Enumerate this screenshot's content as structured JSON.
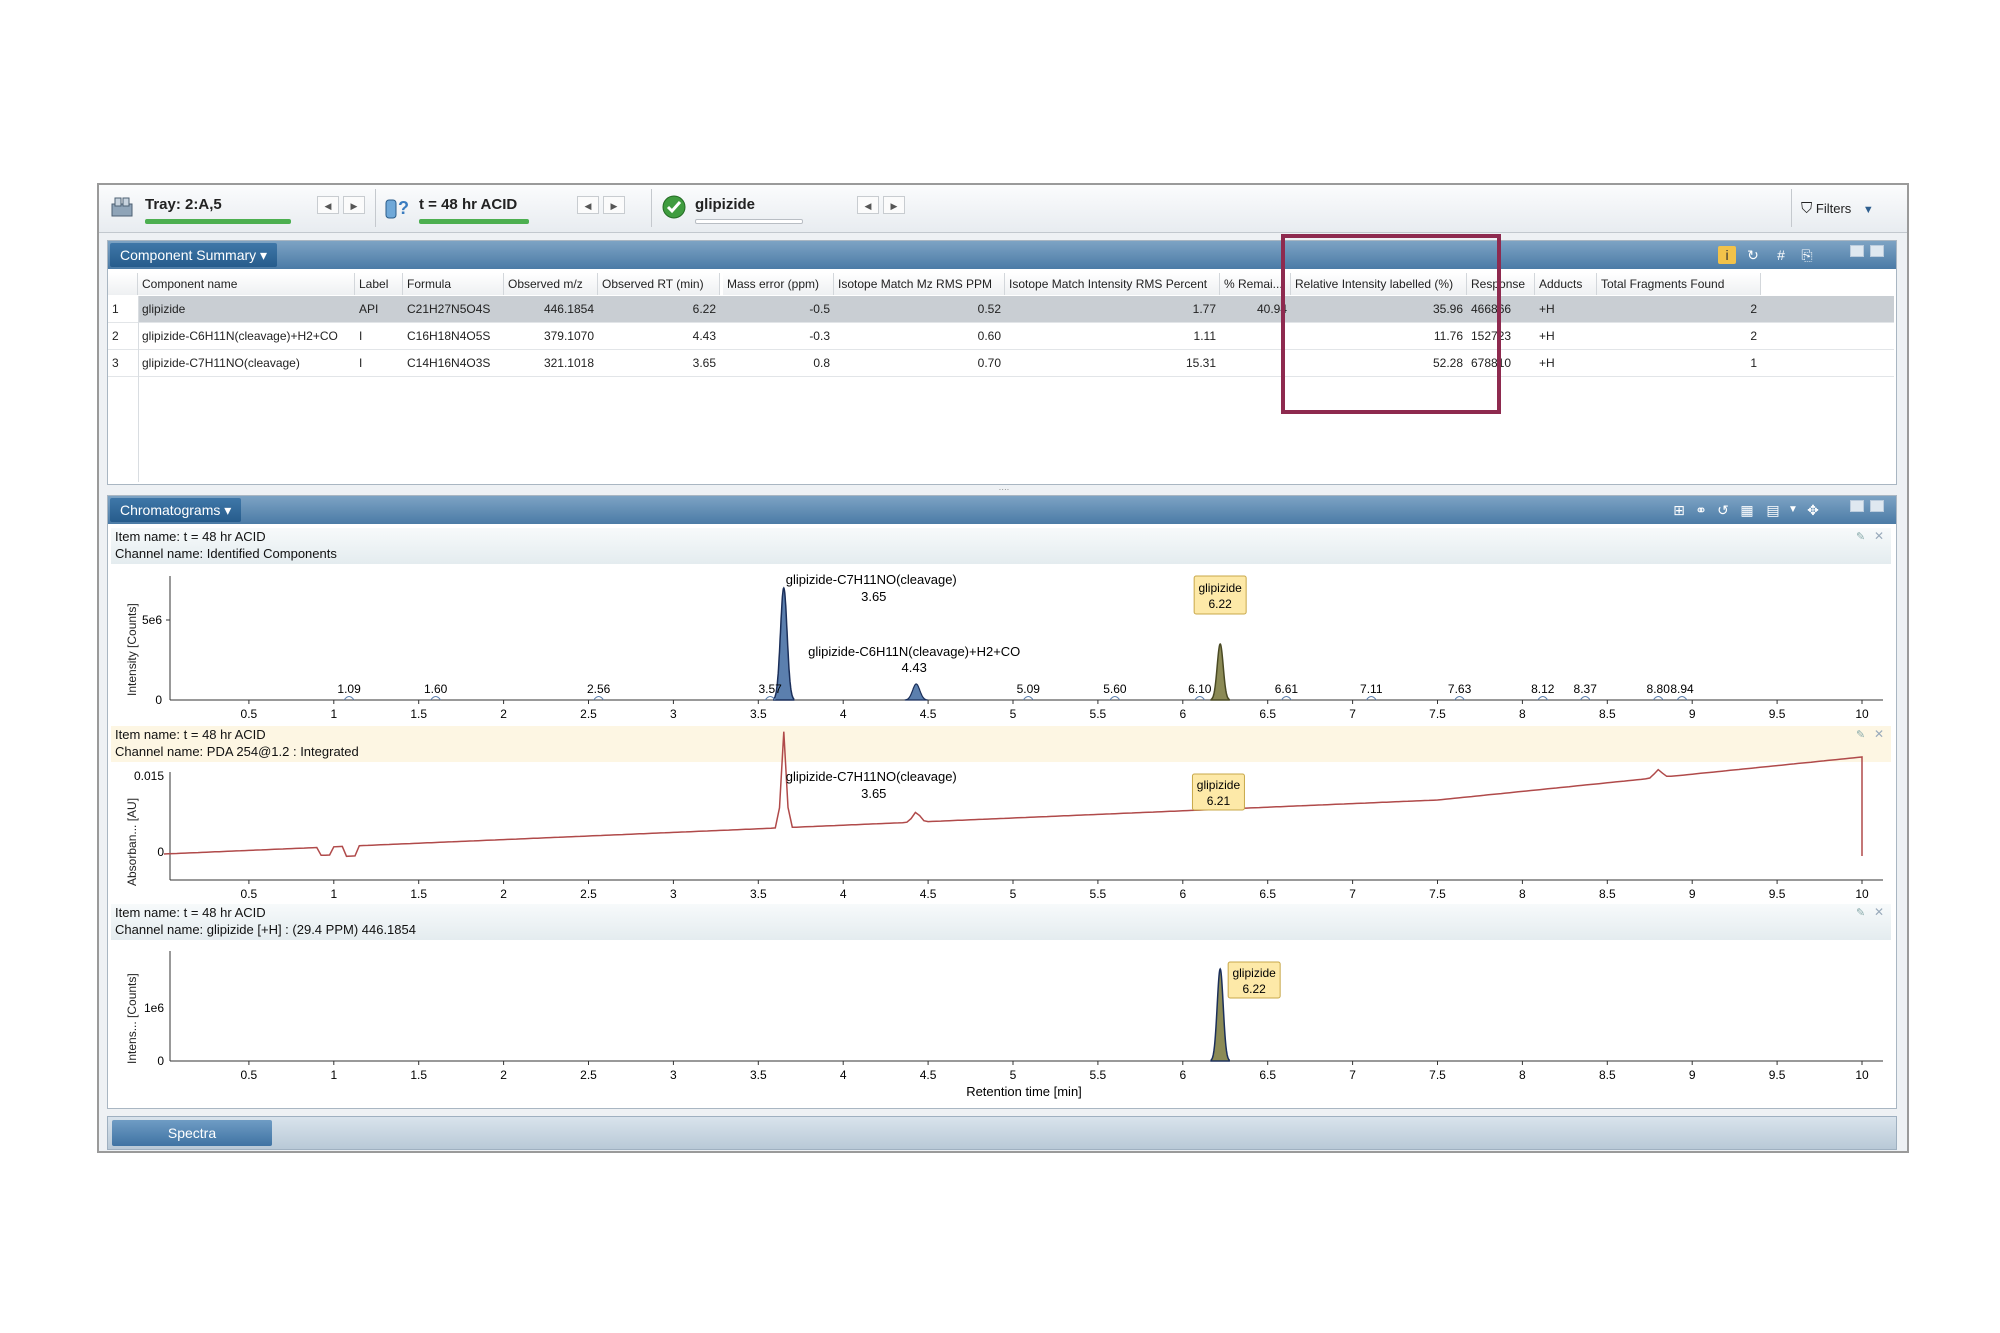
{
  "toolbar": {
    "tray_label": "Tray: 2:A,5",
    "item_label": "t = 48 hr ACID",
    "component_label": "glipizide",
    "filters_label": "Filters",
    "tray_icon": "tray-icon",
    "item_icon": "question-icon",
    "component_icon": "check-circle-icon",
    "tray_progress": 1.0,
    "item_progress": 1.0,
    "component_progress": 0.0
  },
  "component_summary": {
    "title": "Component Summary ▾",
    "columns": [
      "Component name",
      "Label",
      "Formula",
      "Observed m/z",
      "Observed RT (min)",
      "Mass error (ppm)",
      "Isotope Match Mz RMS PPM",
      "Isotope Match Intensity RMS Percent",
      "% Remai...",
      "Relative Intensity labelled (%)",
      "Response",
      "Adducts",
      "Total Fragments Found"
    ],
    "rows": [
      {
        "n": "1",
        "name": "glipizide",
        "label": "API",
        "formula": "C21H27N5O4S",
        "mz": "446.1854",
        "rt": "6.22",
        "mass_err": "-0.5",
        "iso_mz": "0.52",
        "iso_int": "1.77",
        "remain": "40.94",
        "rel": "35.96",
        "response": "466866",
        "adducts": "+H",
        "frags": "2"
      },
      {
        "n": "2",
        "name": "glipizide-C6H11N(cleavage)+H2+CO",
        "label": "I",
        "formula": "C16H18N4O5S",
        "mz": "379.1070",
        "rt": "4.43",
        "mass_err": "-0.3",
        "iso_mz": "0.60",
        "iso_int": "1.11",
        "remain": "",
        "rel": "11.76",
        "response": "152723",
        "adducts": "+H",
        "frags": "2"
      },
      {
        "n": "3",
        "name": "glipizide-C7H11NO(cleavage)",
        "label": "I",
        "formula": "C14H16N4O3S",
        "mz": "321.1018",
        "rt": "3.65",
        "mass_err": "0.8",
        "iso_mz": "0.70",
        "iso_int": "15.31",
        "remain": "",
        "rel": "52.28",
        "response": "678810",
        "adducts": "+H",
        "frags": "1"
      }
    ]
  },
  "chromatograms": {
    "title": "Chromatograms ▾",
    "x_label": "Retention time [min]",
    "x_ticks": [
      "0.5",
      "1",
      "1.5",
      "2",
      "2.5",
      "3",
      "3.5",
      "4",
      "4.5",
      "5",
      "5.5",
      "6",
      "6.5",
      "7",
      "7.5",
      "8",
      "8.5",
      "9",
      "9.5",
      "10"
    ],
    "strips": [
      {
        "item_name": "Item name: t = 48 hr ACID",
        "channel_name": "Channel name: Identified Components",
        "ylabel": "Intensity [Counts]",
        "y_ticks": [
          "5e6",
          "0"
        ],
        "peak_labels": [
          "1.09",
          "1.60",
          "2.56",
          "3.57",
          "5.09",
          "5.60",
          "6.10",
          "6.61",
          "7.11",
          "7.63",
          "8.12",
          "8.37",
          "8.80",
          "8.94"
        ],
        "annotations": [
          {
            "name": "glipizide-C7H11NO(cleavage)",
            "rt": "3.65"
          },
          {
            "name": "glipizide-C6H11N(cleavage)+H2+CO",
            "rt": "4.43"
          },
          {
            "name": "glipizide",
            "rt": "6.22"
          }
        ]
      },
      {
        "item_name": "Item name: t = 48 hr ACID",
        "channel_name": "Channel name: PDA 254@1.2 : Integrated",
        "ylabel": "Absorban... [AU]",
        "y_ticks": [
          "0.015",
          "0"
        ],
        "annotations": [
          {
            "name": "glipizide-C7H11NO(cleavage)",
            "rt": "3.65"
          },
          {
            "name": "glipizide",
            "rt": "6.21"
          }
        ]
      },
      {
        "item_name": "Item name: t = 48 hr ACID",
        "channel_name": "Channel name: glipizide [+H] : (29.4 PPM) 446.1854",
        "ylabel": "Intens... [Counts]",
        "y_ticks": [
          "1e6",
          "0"
        ],
        "annotations": [
          {
            "name": "glipizide",
            "rt": "6.22"
          }
        ]
      }
    ]
  },
  "spectra": {
    "tab_label": "Spectra"
  },
  "colors": {
    "highlight_box": "#8e2a4f",
    "peak_fill": "#5b7fae",
    "peak_line": "#1b2f5a",
    "pda_line": "#b04a4a",
    "glipizide_peak": "#7a7a44",
    "callout": "#fde9a8"
  }
}
